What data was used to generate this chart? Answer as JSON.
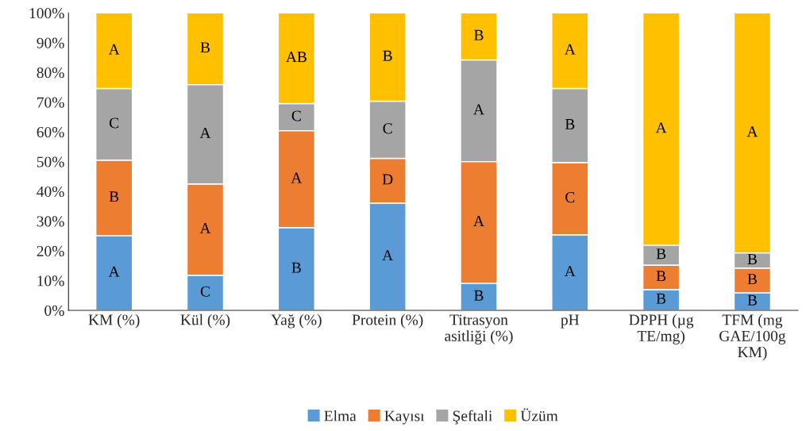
{
  "chart_data": {
    "type": "bar",
    "stacked": true,
    "categories": [
      "KM (%)",
      "Kül (%)",
      "Yağ (%)",
      "Protein (%)",
      "Titrasyon\nasitliği (%)",
      "pH",
      "DPPH (µg\nTE/mg)",
      "TFM (mg\nGAE/100g\nKM)"
    ],
    "series": [
      {
        "name": "Elma",
        "color": "#5b9bd5",
        "values": [
          25.1,
          11.8,
          27.8,
          36.1,
          9.1,
          25.4,
          7.0,
          5.9
        ],
        "value_labels": [
          "A",
          "C",
          "B",
          "A",
          "B",
          "A",
          "B",
          "B"
        ]
      },
      {
        "name": "Kayısı",
        "color": "#ed7d31",
        "values": [
          25.4,
          30.7,
          32.6,
          15.0,
          40.9,
          24.3,
          8.2,
          8.3
        ],
        "value_labels": [
          "B",
          "A",
          "A",
          "D",
          "A",
          "C",
          "B",
          "B"
        ]
      },
      {
        "name": "Şeftali",
        "color": "#a5a5a5",
        "values": [
          24.1,
          33.4,
          9.1,
          19.2,
          34.2,
          24.9,
          6.7,
          5.1
        ],
        "value_labels": [
          "C",
          "A",
          "C",
          "C",
          "A",
          "B",
          "B",
          "B"
        ]
      },
      {
        "name": "Üzüm",
        "color": "#ffc000",
        "values": [
          25.4,
          24.1,
          30.5,
          29.7,
          15.8,
          25.4,
          78.1,
          80.7
        ],
        "value_labels": [
          "A",
          "B",
          "AB",
          "B",
          "B",
          "A",
          "A",
          "A"
        ]
      }
    ],
    "ylim": [
      0,
      100
    ],
    "yticks": [
      {
        "value": 0,
        "label": "0%"
      },
      {
        "value": 10,
        "label": "10%"
      },
      {
        "value": 20,
        "label": "20%"
      },
      {
        "value": 30,
        "label": "30%"
      },
      {
        "value": 40,
        "label": "40%"
      },
      {
        "value": 50,
        "label": "50%"
      },
      {
        "value": 60,
        "label": "60%"
      },
      {
        "value": 70,
        "label": "70%"
      },
      {
        "value": 80,
        "label": "80%"
      },
      {
        "value": 90,
        "label": "90%"
      },
      {
        "value": 100,
        "label": "100%"
      }
    ],
    "grid": false,
    "legend": "bottom"
  }
}
